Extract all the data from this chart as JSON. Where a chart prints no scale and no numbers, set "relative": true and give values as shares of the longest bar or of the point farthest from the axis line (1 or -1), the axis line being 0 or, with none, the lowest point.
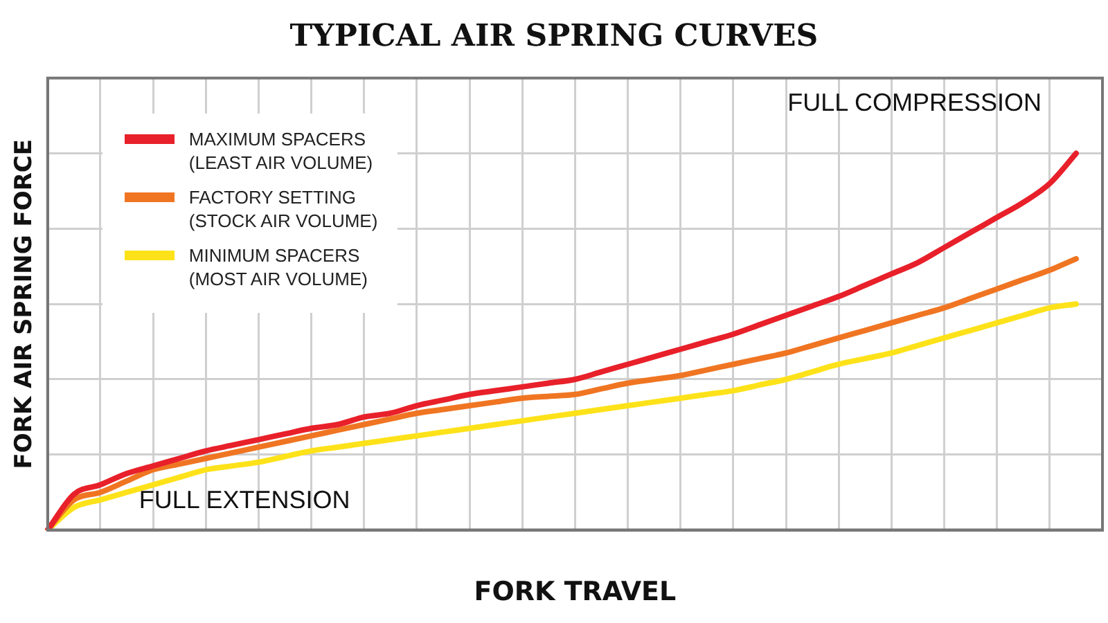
{
  "chart_data": {
    "type": "line",
    "title": "TYPICAL AIR SPRING CURVES",
    "xlabel": "FORK TRAVEL",
    "ylabel": "FORK AIR SPRING FORCE",
    "relative": true,
    "grid": true,
    "legend": "top left",
    "marker": "none",
    "line_style": "solid",
    "categories": [
      null,
      null,
      null,
      null,
      null,
      null,
      null,
      null,
      null,
      null,
      null,
      null,
      null,
      null,
      null,
      null,
      null,
      null,
      null,
      null,
      null,
      null,
      null,
      null,
      null,
      null,
      null,
      null,
      null,
      null,
      null,
      null,
      null,
      null,
      null,
      null,
      null,
      null,
      null,
      null,
      null
    ],
    "series": [
      {
        "name": "MAXIMUM SPACERS\n(LEAST AIR VOLUME)",
        "color": "#e8202a",
        "values": [
          0,
          0.095,
          0.12,
          0.15,
          0.17,
          0.19,
          0.21,
          0.225,
          0.24,
          0.255,
          0.27,
          0.28,
          0.3,
          0.31,
          0.33,
          0.345,
          0.36,
          0.37,
          0.38,
          0.39,
          0.4,
          0.42,
          0.44,
          0.46,
          0.48,
          0.5,
          0.52,
          0.545,
          0.57,
          0.595,
          0.62,
          0.65,
          0.68,
          0.71,
          0.75,
          0.79,
          0.83,
          0.87,
          0.92,
          1,
          null
        ]
      },
      {
        "name": "FACTORY SETTING\n(STOCK AIR VOLUME)",
        "color": "#f07522",
        "values": [
          0,
          0.08,
          0.1,
          0.13,
          0.16,
          0.175,
          0.19,
          0.205,
          0.22,
          0.235,
          0.25,
          0.265,
          0.28,
          0.295,
          0.31,
          0.32,
          0.33,
          0.34,
          0.35,
          0.355,
          0.36,
          0.375,
          0.39,
          0.4,
          0.41,
          0.425,
          0.44,
          0.455,
          0.47,
          0.49,
          0.51,
          0.53,
          0.55,
          0.57,
          0.59,
          0.615,
          0.64,
          0.665,
          0.69,
          0.72,
          null
        ]
      },
      {
        "name": "MINIMUM SPACERS\n(MOST AIR VOLUME)",
        "color": "#fde21a",
        "values": [
          0,
          0.06,
          0.08,
          0.1,
          0.12,
          0.14,
          0.16,
          0.17,
          0.18,
          0.195,
          0.21,
          0.22,
          0.23,
          0.24,
          0.25,
          0.26,
          0.27,
          0.28,
          0.29,
          0.3,
          0.31,
          0.32,
          0.33,
          0.34,
          0.35,
          0.36,
          0.37,
          0.385,
          0.4,
          0.42,
          0.44,
          0.455,
          0.47,
          0.49,
          0.51,
          0.53,
          0.55,
          0.57,
          0.59,
          0.6,
          null
        ]
      }
    ],
    "annotations": [
      "FULL EXTENSION",
      "FULL COMPRESSION"
    ]
  }
}
